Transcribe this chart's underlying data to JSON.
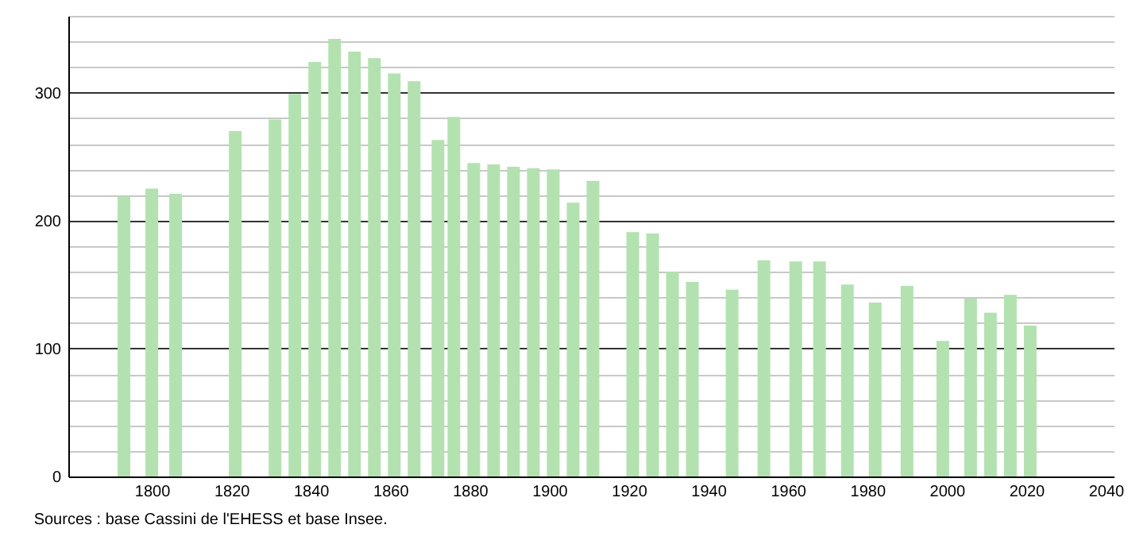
{
  "chart_data": {
    "type": "bar",
    "annotations": [
      "Sources : base Cassini de l'EHESS et base Insee."
    ],
    "x": [
      1793,
      1800,
      1806,
      1821,
      1831,
      1836,
      1841,
      1846,
      1851,
      1856,
      1861,
      1866,
      1872,
      1876,
      1881,
      1886,
      1891,
      1896,
      1901,
      1906,
      1911,
      1921,
      1926,
      1931,
      1936,
      1946,
      1954,
      1962,
      1968,
      1975,
      1982,
      1990,
      1999,
      2006,
      2011,
      2016,
      2021
    ],
    "values": [
      219,
      225,
      221,
      270,
      279,
      299,
      324,
      342,
      332,
      327,
      315,
      309,
      263,
      281,
      245,
      244,
      242,
      241,
      240,
      214,
      231,
      191,
      190,
      160,
      152,
      146,
      169,
      168,
      168,
      150,
      136,
      149,
      106,
      139,
      128,
      142,
      118
    ],
    "color": "#b3e2b0",
    "xlim": [
      1779,
      2042
    ],
    "xticks": [
      1800,
      1820,
      1840,
      1860,
      1880,
      1900,
      1920,
      1940,
      1960,
      1980,
      2000,
      2020,
      2040
    ],
    "ylim": [
      0,
      360
    ],
    "yticks": [
      0,
      {
        "value": 20,
        "label": null
      },
      {
        "value": 40,
        "label": null
      },
      {
        "value": 60,
        "label": null
      },
      {
        "value": 80,
        "label": null
      },
      100,
      {
        "value": 120,
        "label": null
      },
      {
        "value": 140,
        "label": null
      },
      {
        "value": 160,
        "label": null
      },
      {
        "value": 180,
        "label": null
      },
      200,
      {
        "value": 220,
        "label": null
      },
      {
        "value": 240,
        "label": null
      },
      {
        "value": 260,
        "label": null
      },
      {
        "value": 280,
        "label": null
      },
      300,
      {
        "value": 320,
        "label": null
      },
      {
        "value": 340,
        "label": null
      },
      {
        "value": 360,
        "label": null
      }
    ],
    "grid": "y"
  }
}
